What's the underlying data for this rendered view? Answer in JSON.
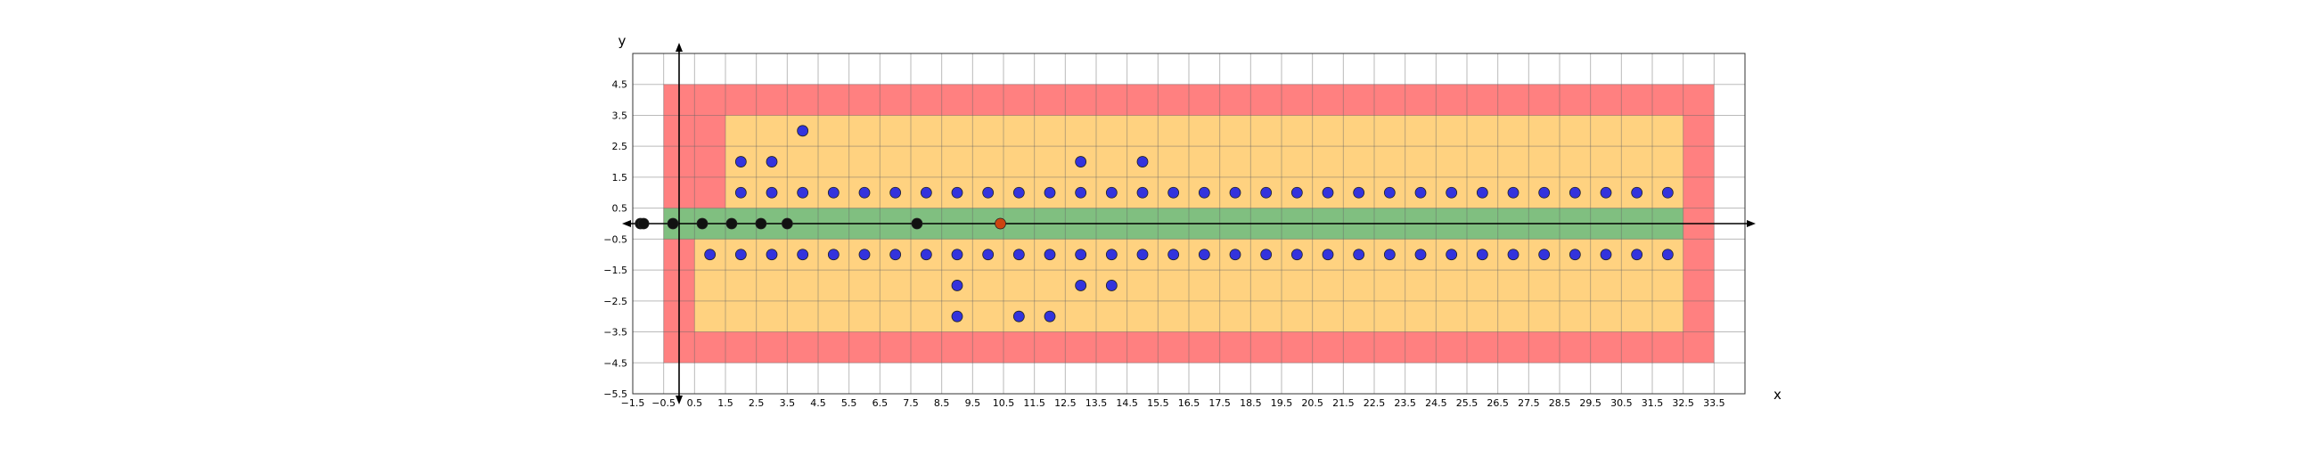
{
  "chart_data": {
    "type": "scatter",
    "title": "",
    "xlabel": "x",
    "ylabel": "y",
    "xlim": [
      -1.5,
      34.5
    ],
    "ylim": [
      -5.5,
      5.5
    ],
    "x_ticks": [
      -1.5,
      -0.5,
      0.5,
      1.5,
      2.5,
      3.5,
      4.5,
      5.5,
      6.5,
      7.5,
      8.5,
      9.5,
      10.5,
      11.5,
      12.5,
      13.5,
      14.5,
      15.5,
      16.5,
      17.5,
      18.5,
      19.5,
      20.5,
      21.5,
      22.5,
      23.5,
      24.5,
      25.5,
      26.5,
      27.5,
      28.5,
      29.5,
      30.5,
      31.5,
      32.5,
      33.5
    ],
    "x_tick_labels": [
      "−1.5",
      "−0.5",
      "0.5",
      "1.5",
      "2.5",
      "3.5",
      "4.5",
      "5.5",
      "6.5",
      "7.5",
      "8.5",
      "9.5",
      "10.5",
      "11.5",
      "12.5",
      "13.5",
      "14.5",
      "15.5",
      "16.5",
      "17.5",
      "18.5",
      "19.5",
      "20.5",
      "21.5",
      "22.5",
      "23.5",
      "24.5",
      "25.5",
      "26.5",
      "27.5",
      "28.5",
      "29.5",
      "30.5",
      "31.5",
      "32.5",
      "33.5"
    ],
    "y_ticks": [
      -5.5,
      -4.5,
      -3.5,
      -2.5,
      -1.5,
      -0.5,
      0.5,
      1.5,
      2.5,
      3.5,
      4.5
    ],
    "y_tick_labels": [
      "−5.5",
      "−4.5",
      "−3.5",
      "−2.5",
      "−1.5",
      "−0.5",
      "0.5",
      "1.5",
      "2.5",
      "3.5",
      "4.5"
    ],
    "grid": true,
    "regions": [
      {
        "x_range": [
          -0.5,
          33.5
        ],
        "y_range": [
          -4.5,
          4.5
        ],
        "color": "#ff8080"
      },
      {
        "x_range": [
          1.5,
          32.5
        ],
        "y_range": [
          0.5,
          3.5
        ],
        "color": "#ffd280"
      },
      {
        "x_range": [
          0.5,
          32.5
        ],
        "y_range": [
          -3.5,
          -0.5
        ],
        "color": "#ffd280"
      },
      {
        "x_range": [
          -0.5,
          32.5
        ],
        "y_range": [
          -0.5,
          0.5
        ],
        "color": "#80bf80"
      }
    ],
    "series": [
      {
        "color": "#3333dd",
        "points": [
          [
            2,
            1
          ],
          [
            3,
            1
          ],
          [
            4,
            1
          ],
          [
            5,
            1
          ],
          [
            6,
            1
          ],
          [
            7,
            1
          ],
          [
            8,
            1
          ],
          [
            9,
            1
          ],
          [
            10,
            1
          ],
          [
            11,
            1
          ],
          [
            12,
            1
          ],
          [
            13,
            1
          ],
          [
            14,
            1
          ],
          [
            15,
            1
          ],
          [
            16,
            1
          ],
          [
            17,
            1
          ],
          [
            18,
            1
          ],
          [
            19,
            1
          ],
          [
            20,
            1
          ],
          [
            21,
            1
          ],
          [
            22,
            1
          ],
          [
            23,
            1
          ],
          [
            24,
            1
          ],
          [
            25,
            1
          ],
          [
            26,
            1
          ],
          [
            27,
            1
          ],
          [
            28,
            1
          ],
          [
            29,
            1
          ],
          [
            30,
            1
          ],
          [
            31,
            1
          ],
          [
            32,
            1
          ],
          [
            2,
            2
          ],
          [
            3,
            2
          ],
          [
            13,
            2
          ],
          [
            15,
            2
          ],
          [
            4,
            3
          ],
          [
            1,
            -1
          ],
          [
            2,
            -1
          ],
          [
            3,
            -1
          ],
          [
            4,
            -1
          ],
          [
            5,
            -1
          ],
          [
            6,
            -1
          ],
          [
            7,
            -1
          ],
          [
            8,
            -1
          ],
          [
            9,
            -1
          ],
          [
            10,
            -1
          ],
          [
            11,
            -1
          ],
          [
            12,
            -1
          ],
          [
            13,
            -1
          ],
          [
            14,
            -1
          ],
          [
            15,
            -1
          ],
          [
            16,
            -1
          ],
          [
            17,
            -1
          ],
          [
            18,
            -1
          ],
          [
            19,
            -1
          ],
          [
            20,
            -1
          ],
          [
            21,
            -1
          ],
          [
            22,
            -1
          ],
          [
            23,
            -1
          ],
          [
            24,
            -1
          ],
          [
            25,
            -1
          ],
          [
            26,
            -1
          ],
          [
            27,
            -1
          ],
          [
            28,
            -1
          ],
          [
            29,
            -1
          ],
          [
            30,
            -1
          ],
          [
            31,
            -1
          ],
          [
            32,
            -1
          ],
          [
            9,
            -2
          ],
          [
            13,
            -2
          ],
          [
            14,
            -2
          ],
          [
            9,
            -3
          ],
          [
            11,
            -3
          ],
          [
            12,
            -3
          ]
        ]
      },
      {
        "color": "#111111",
        "points": [
          [
            -1.25,
            0
          ],
          [
            -1.15,
            0
          ],
          [
            -0.2,
            0
          ],
          [
            0.75,
            0
          ],
          [
            1.7,
            0
          ],
          [
            2.65,
            0
          ],
          [
            3.5,
            0
          ],
          [
            7.7,
            0
          ]
        ]
      },
      {
        "color": "#cc4411",
        "points": [
          [
            10.4,
            0
          ]
        ]
      }
    ]
  }
}
